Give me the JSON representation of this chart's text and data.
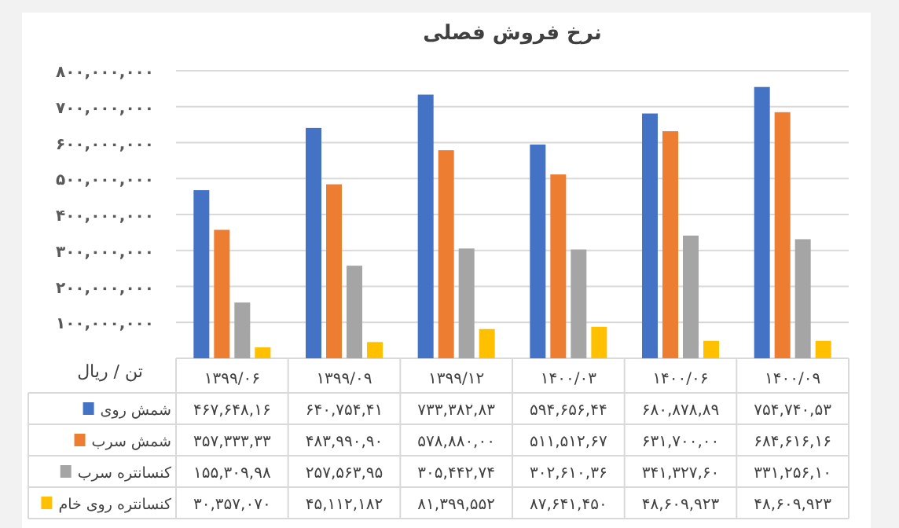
{
  "chart_data": {
    "type": "bar",
    "title": "نرخ فروش فصلی",
    "ylabel": "تن / ریال",
    "categories": [
      "۱۳۹۹/۰۶",
      "۱۳۹۹/۰۹",
      "۱۳۹۹/۱۲",
      "۱۴۰۰/۰۳",
      "۱۴۰۰/۰۶",
      "۱۴۰۰/۰۹"
    ],
    "series": [
      {
        "name": "شمش روی",
        "color": "#4472c4",
        "values": [
          467648160,
          640754410,
          733382830,
          594656440,
          680878890,
          754740530
        ],
        "value_labels": [
          "۴۶۷,۶۴۸,۱۶",
          "۶۴۰,۷۵۴,۴۱",
          "۷۳۳,۳۸۲,۸۳",
          "۵۹۴,۶۵۶,۴۴",
          "۶۸۰,۸۷۸,۸۹",
          "۷۵۴,۷۴۰,۵۳"
        ]
      },
      {
        "name": "شمش سرب",
        "color": "#ed7d31",
        "values": [
          357333330,
          483990900,
          578880000,
          511512670,
          631700000,
          684616160
        ],
        "value_labels": [
          "۳۵۷,۳۳۳,۳۳",
          "۴۸۳,۹۹۰,۹۰",
          "۵۷۸,۸۸۰,۰۰",
          "۵۱۱,۵۱۲,۶۷",
          "۶۳۱,۷۰۰,۰۰",
          "۶۸۴,۶۱۶,۱۶"
        ]
      },
      {
        "name": "کنسانتره سرب",
        "color": "#a5a5a5",
        "values": [
          155309980,
          257563950,
          305442740,
          302610360,
          341327600,
          331256100
        ],
        "value_labels": [
          "۱۵۵,۳۰۹,۹۸",
          "۲۵۷,۵۶۳,۹۵",
          "۳۰۵,۴۴۲,۷۴",
          "۳۰۲,۶۱۰,۳۶",
          "۳۴۱,۳۲۷,۶۰",
          "۳۳۱,۲۵۶,۱۰"
        ]
      },
      {
        "name": "کنسانتره روی خام",
        "color": "#ffc000",
        "values": [
          30357070,
          45112182,
          81399552,
          87641450,
          48609923,
          48609923
        ],
        "value_labels": [
          "۳۰,۳۵۷,۰۷۰",
          "۴۵,۱۱۲,۱۸۲",
          "۸۱,۳۹۹,۵۵۲",
          "۸۷,۶۴۱,۴۵۰",
          "۴۸,۶۰۹,۹۲۳",
          "۴۸,۶۰۹,۹۲۳"
        ]
      }
    ],
    "ylim": [
      0,
      800000000
    ],
    "yticks": [
      {
        "value": 100000000,
        "label": "۱۰۰,۰۰۰,۰۰۰"
      },
      {
        "value": 200000000,
        "label": "۲۰۰,۰۰۰,۰۰۰"
      },
      {
        "value": 300000000,
        "label": "۳۰۰,۰۰۰,۰۰۰"
      },
      {
        "value": 400000000,
        "label": "۴۰۰,۰۰۰,۰۰۰"
      },
      {
        "value": 500000000,
        "label": "۵۰۰,۰۰۰,۰۰۰"
      },
      {
        "value": 600000000,
        "label": "۶۰۰,۰۰۰,۰۰۰"
      },
      {
        "value": 700000000,
        "label": "۷۰۰,۰۰۰,۰۰۰"
      },
      {
        "value": 800000000,
        "label": "۸۰۰,۰۰۰,۰۰۰"
      }
    ],
    "grid": "y",
    "legend": "bottom left"
  }
}
